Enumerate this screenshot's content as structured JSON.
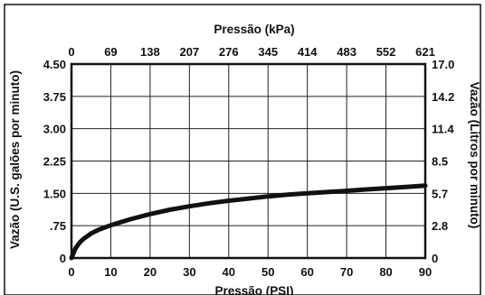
{
  "chart_data": {
    "type": "line",
    "xlabel": "Pressão (PSI)",
    "x2label": "Pressão (kPa)",
    "ylabel": "Vazão (U.S. galões por minuto)",
    "y2label": "Vazão (Litros por minuto)",
    "xlim": [
      0,
      90
    ],
    "ylim": [
      0,
      4.5
    ],
    "x_ticks": [
      0,
      10,
      20,
      30,
      40,
      50,
      60,
      70,
      80,
      90
    ],
    "x2_ticks": [
      "0",
      "69",
      "138",
      "207",
      "276",
      "345",
      "414",
      "483",
      "552",
      "621"
    ],
    "y_ticks": [
      "0",
      ".75",
      "1.50",
      "2.25",
      "3.00",
      "3.75",
      "4.50"
    ],
    "y2_ticks": [
      "0",
      "2.8",
      "5.7",
      "8.5",
      "11.4",
      "14.2",
      "17.0"
    ],
    "grid": true,
    "series": [
      {
        "x": [
          0,
          1,
          2,
          3,
          5,
          7,
          10,
          15,
          20,
          25,
          30,
          35,
          40,
          45,
          50,
          55,
          60,
          65,
          70,
          75,
          80,
          85,
          90
        ],
        "y": [
          0,
          0.22,
          0.35,
          0.44,
          0.57,
          0.66,
          0.76,
          0.9,
          1.02,
          1.12,
          1.2,
          1.27,
          1.33,
          1.38,
          1.43,
          1.47,
          1.5,
          1.53,
          1.56,
          1.59,
          1.62,
          1.65,
          1.68
        ]
      }
    ]
  }
}
